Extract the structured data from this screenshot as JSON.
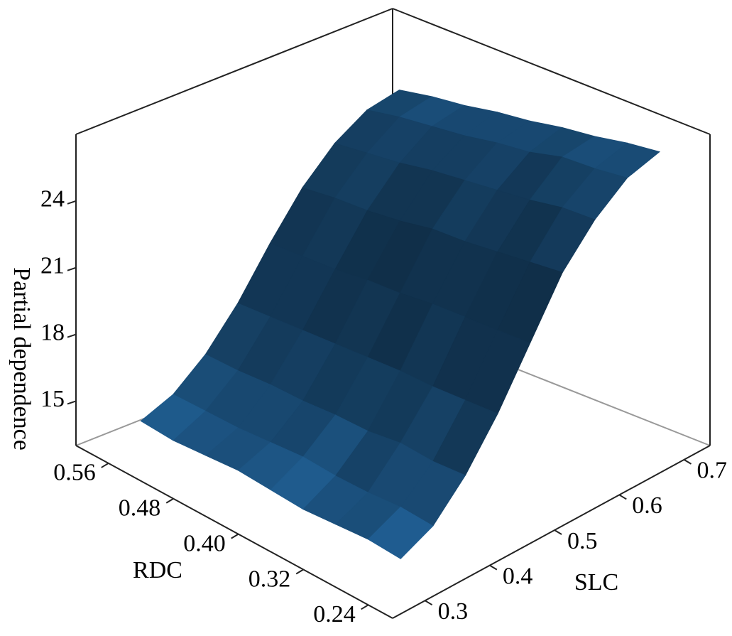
{
  "chart_data": {
    "type": "surface",
    "xlabel": "RDC",
    "ylabel": "SLC",
    "zlabel": "Partial dependence",
    "x": [
      0.24,
      0.28,
      0.32,
      0.36,
      0.4,
      0.44,
      0.48,
      0.52,
      0.56
    ],
    "y": [
      0.3,
      0.35,
      0.4,
      0.45,
      0.5,
      0.55,
      0.6,
      0.65,
      0.7
    ],
    "z": [
      [
        14.3,
        15.0,
        16.5,
        18.5,
        20.9,
        23.3,
        24.9,
        26.0,
        26.4
      ],
      [
        14.4,
        15.1,
        16.4,
        18.4,
        20.8,
        23.1,
        24.8,
        25.8,
        26.2
      ],
      [
        14.3,
        15.0,
        16.5,
        18.3,
        20.7,
        22.9,
        24.5,
        25.7,
        25.9
      ],
      [
        14.2,
        15.0,
        16.3,
        18.3,
        20.6,
        22.7,
        24.3,
        25.3,
        25.7
      ],
      [
        14.3,
        15.1,
        16.3,
        18.2,
        20.4,
        22.6,
        24.1,
        25.1,
        25.4
      ],
      [
        14.4,
        15.0,
        16.2,
        18.1,
        20.3,
        22.3,
        23.9,
        24.8,
        25.2
      ],
      [
        14.3,
        14.9,
        16.2,
        18.0,
        20.1,
        22.1,
        23.6,
        24.6,
        24.9
      ],
      [
        14.2,
        14.9,
        16.1,
        17.9,
        20.0,
        22.0,
        23.4,
        24.4,
        24.7
      ],
      [
        14.3,
        14.9,
        16.1,
        17.8,
        19.9,
        21.8,
        23.2,
        24.1,
        24.4
      ]
    ],
    "color": "#1f5c8f",
    "xlim": [
      0.21,
      0.6
    ],
    "ylim": [
      0.25,
      0.74
    ],
    "zlim": [
      13,
      27
    ],
    "xticks": [
      0.24,
      0.32,
      {
        "value": 0.4,
        "label": "0.40"
      },
      0.48,
      0.56
    ],
    "yticks": [
      0.3,
      0.4,
      0.5,
      0.6,
      0.7
    ],
    "zticks": [
      15,
      18,
      21,
      24
    ]
  }
}
